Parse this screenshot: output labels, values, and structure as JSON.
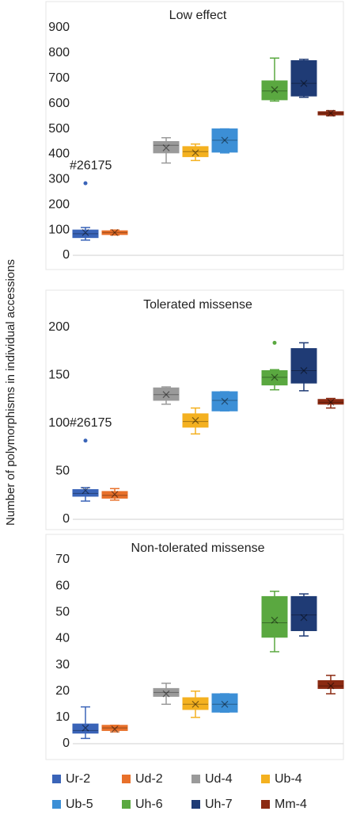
{
  "chart_data": [
    {
      "type": "box",
      "title": "Low effect",
      "ylim": [
        0,
        900
      ],
      "yticks": [
        0,
        100,
        200,
        300,
        400,
        500,
        600,
        700,
        800,
        900
      ],
      "annotations": [
        "#26175"
      ],
      "series": [
        {
          "name": "Ur-2",
          "color": "#3a64b8",
          "min": 60,
          "q1": 70,
          "median": 85,
          "q3": 100,
          "max": 110,
          "mean": 90,
          "outliers": [
            285
          ]
        },
        {
          "name": "Ud-2",
          "color": "#e8702a",
          "min": 80,
          "q1": 82,
          "median": 90,
          "q3": 97,
          "max": 100,
          "mean": 90,
          "outliers": []
        },
        {
          "name": "Ud-4",
          "color": "#9a9a9a",
          "min": 365,
          "q1": 405,
          "median": 435,
          "q3": 450,
          "max": 465,
          "mean": 425,
          "outliers": []
        },
        {
          "name": "Ub-4",
          "color": "#f4b120",
          "min": 375,
          "q1": 390,
          "median": 410,
          "q3": 430,
          "max": 440,
          "mean": 405,
          "outliers": []
        },
        {
          "name": "Ub-5",
          "color": "#3c8fd6",
          "min": 405,
          "q1": 408,
          "median": 455,
          "q3": 500,
          "max": 500,
          "mean": 455,
          "outliers": []
        },
        {
          "name": "Uh-6",
          "color": "#5aa840",
          "min": 610,
          "q1": 615,
          "median": 650,
          "q3": 690,
          "max": 780,
          "mean": 655,
          "outliers": []
        },
        {
          "name": "Uh-7",
          "color": "#1f3b75",
          "min": 625,
          "q1": 630,
          "median": 680,
          "q3": 770,
          "max": 775,
          "mean": 680,
          "outliers": []
        },
        {
          "name": "Mm-4",
          "color": "#8b2a12",
          "min": 552,
          "q1": 555,
          "median": 562,
          "q3": 568,
          "max": 572,
          "mean": 562,
          "outliers": []
        }
      ]
    },
    {
      "type": "box",
      "title": "Tolerated missense",
      "ylabel": "Number of polymorphisms in individual accessions",
      "ylim": [
        0,
        200
      ],
      "yticks": [
        0,
        50,
        100,
        150,
        200
      ],
      "annotations": [
        "#26175"
      ],
      "series": [
        {
          "name": "Ur-2",
          "color": "#3a64b8",
          "min": 19,
          "q1": 24,
          "median": 27,
          "q3": 31,
          "max": 33,
          "mean": 30,
          "outliers": [
            82
          ]
        },
        {
          "name": "Ud-2",
          "color": "#e8702a",
          "min": 20,
          "q1": 22,
          "median": 25,
          "q3": 29,
          "max": 32,
          "mean": 26,
          "outliers": []
        },
        {
          "name": "Ud-4",
          "color": "#9a9a9a",
          "min": 120,
          "q1": 124,
          "median": 130,
          "q3": 137,
          "max": 138,
          "mean": 130,
          "outliers": []
        },
        {
          "name": "Ub-4",
          "color": "#f4b120",
          "min": 89,
          "q1": 96,
          "median": 102,
          "q3": 110,
          "max": 116,
          "mean": 103,
          "outliers": []
        },
        {
          "name": "Ub-5",
          "color": "#3c8fd6",
          "min": 113,
          "q1": 113,
          "median": 124,
          "q3": 133,
          "max": 133,
          "mean": 123,
          "outliers": []
        },
        {
          "name": "Uh-6",
          "color": "#5aa840",
          "min": 135,
          "q1": 140,
          "median": 148,
          "q3": 155,
          "max": 156,
          "mean": 148,
          "outliers": [
            184
          ]
        },
        {
          "name": "Uh-7",
          "color": "#1f3b75",
          "min": 134,
          "q1": 142,
          "median": 155,
          "q3": 178,
          "max": 184,
          "mean": 155,
          "outliers": []
        },
        {
          "name": "Mm-4",
          "color": "#8b2a12",
          "min": 116,
          "q1": 120,
          "median": 122,
          "q3": 125,
          "max": 126,
          "mean": 122,
          "outliers": []
        }
      ]
    },
    {
      "type": "box",
      "title": "Non-tolerated missense",
      "ylim": [
        0,
        70
      ],
      "yticks": [
        0,
        10,
        20,
        30,
        40,
        50,
        60,
        70
      ],
      "series": [
        {
          "name": "Ur-2",
          "color": "#3a64b8",
          "min": 2,
          "q1": 4,
          "median": 5,
          "q3": 7.5,
          "max": 14,
          "mean": 6,
          "outliers": []
        },
        {
          "name": "Ud-2",
          "color": "#e8702a",
          "min": 4.5,
          "q1": 5,
          "median": 6,
          "q3": 7,
          "max": 7,
          "mean": 5.5,
          "outliers": []
        },
        {
          "name": "Ud-4",
          "color": "#9a9a9a",
          "min": 15,
          "q1": 18,
          "median": 19.5,
          "q3": 21,
          "max": 23,
          "mean": 19,
          "outliers": []
        },
        {
          "name": "Ub-4",
          "color": "#f4b120",
          "min": 10,
          "q1": 13,
          "median": 15,
          "q3": 17.5,
          "max": 20,
          "mean": 15,
          "outliers": []
        },
        {
          "name": "Ub-5",
          "color": "#3c8fd6",
          "min": 12,
          "q1": 12,
          "median": 15,
          "q3": 19,
          "max": 19,
          "mean": 15,
          "outliers": []
        },
        {
          "name": "Uh-6",
          "color": "#5aa840",
          "min": 35,
          "q1": 40.5,
          "median": 46,
          "q3": 56,
          "max": 58,
          "mean": 47,
          "outliers": []
        },
        {
          "name": "Uh-7",
          "color": "#1f3b75",
          "min": 41,
          "q1": 43,
          "median": 49,
          "q3": 56,
          "max": 57,
          "mean": 48,
          "outliers": []
        },
        {
          "name": "Mm-4",
          "color": "#8b2a12",
          "min": 19,
          "q1": 21,
          "median": 22,
          "q3": 24,
          "max": 26,
          "mean": 22,
          "outliers": []
        }
      ]
    }
  ]
}
